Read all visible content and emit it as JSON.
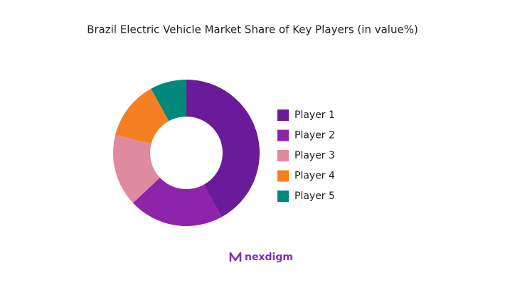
{
  "chart_data": {
    "type": "donut",
    "title": "Brazil Electric Vehicle Market Share of Key Players (in value%)",
    "categories": [
      "Player 1",
      "Player 2",
      "Player 3",
      "Player 4",
      "Player 5"
    ],
    "values": [
      42,
      21,
      16,
      13,
      8
    ],
    "colors": [
      "#6a1b9a",
      "#8e24aa",
      "#e08a9e",
      "#f57f20",
      "#00897b"
    ],
    "legend": "right"
  },
  "brand": "nexdigm"
}
